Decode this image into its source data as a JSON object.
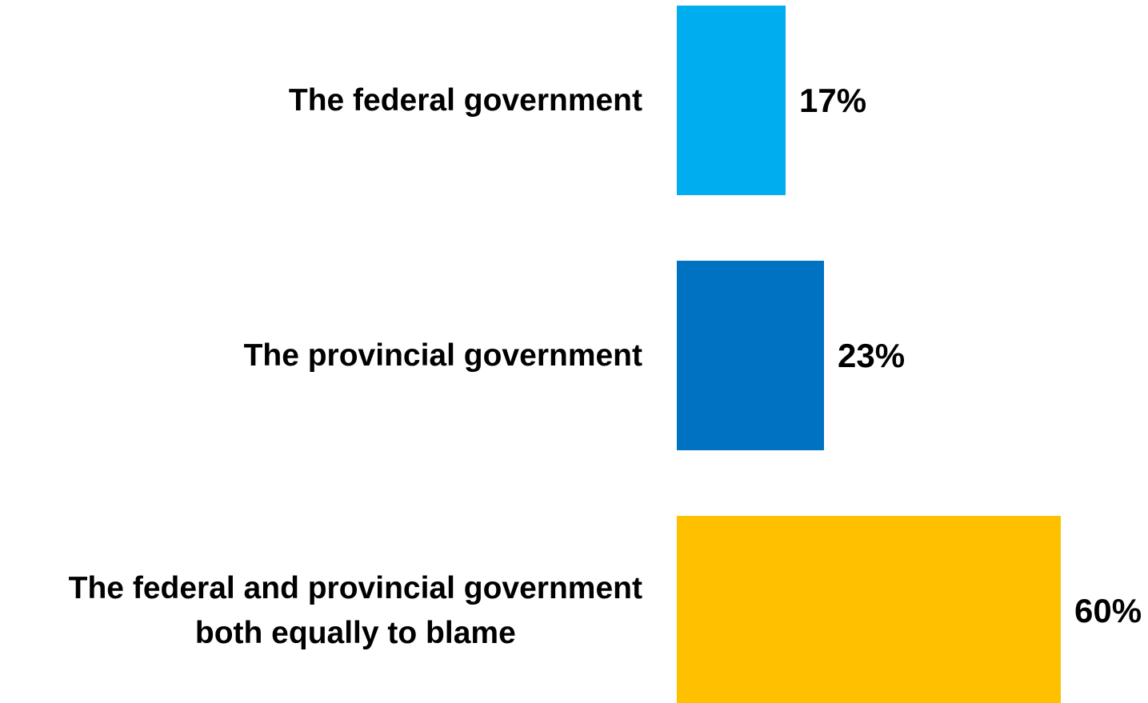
{
  "chart_data": {
    "type": "bar",
    "orientation": "horizontal",
    "categories": [
      [
        "The federal government"
      ],
      [
        "The provincial government"
      ],
      [
        "The federal and provincial government",
        "both equally to blame"
      ]
    ],
    "values": [
      17,
      23,
      60
    ],
    "value_labels": [
      "17%",
      "23%",
      "60%"
    ],
    "colors": [
      "#00AEEF",
      "#0072C2",
      "#FFC000"
    ],
    "xlim": [
      0,
      60
    ],
    "grid": false,
    "legend": "none"
  }
}
